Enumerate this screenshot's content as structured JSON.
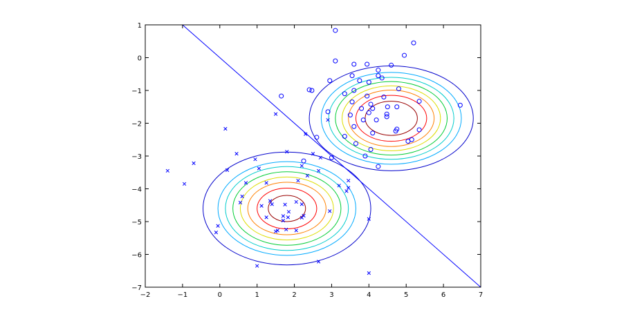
{
  "chart_data": {
    "type": "scatter",
    "title": "",
    "xlabel": "",
    "ylabel": "",
    "xlim": [
      -2,
      7
    ],
    "ylim": [
      -7,
      1
    ],
    "xticks": [
      "−2",
      "−1",
      "0",
      "1",
      "2",
      "3",
      "4",
      "5",
      "6",
      "7"
    ],
    "yticks": [
      "1",
      "0",
      "−1",
      "−2",
      "−3",
      "−4",
      "−5",
      "−6",
      "−7"
    ],
    "grid": false,
    "legend": "none",
    "colors": {
      "points": "#0000ff",
      "boundary": "#0000ff",
      "axes": "#000000"
    },
    "series": [
      {
        "marker": "o",
        "points": [
          [
            3.1,
            0.83
          ],
          [
            5.2,
            0.45
          ],
          [
            3.1,
            -0.1
          ],
          [
            4.95,
            0.07
          ],
          [
            4.6,
            -0.23
          ],
          [
            3.6,
            -0.2
          ],
          [
            3.95,
            -0.2
          ],
          [
            4.25,
            -0.38
          ],
          [
            3.55,
            -0.55
          ],
          [
            4.25,
            -0.55
          ],
          [
            4.35,
            -0.62
          ],
          [
            2.95,
            -0.7
          ],
          [
            3.75,
            -0.7
          ],
          [
            4.0,
            -0.75
          ],
          [
            2.4,
            -0.98
          ],
          [
            2.47,
            -1.0
          ],
          [
            3.35,
            -1.1
          ],
          [
            3.6,
            -1.0
          ],
          [
            4.8,
            -0.95
          ],
          [
            1.65,
            -1.17
          ],
          [
            3.95,
            -1.17
          ],
          [
            4.4,
            -1.2
          ],
          [
            3.55,
            -1.35
          ],
          [
            5.35,
            -1.33
          ],
          [
            4.05,
            -1.42
          ],
          [
            4.5,
            -1.5
          ],
          [
            4.75,
            -1.5
          ],
          [
            2.9,
            -1.65
          ],
          [
            3.8,
            -1.55
          ],
          [
            4.1,
            -1.55
          ],
          [
            4.0,
            -1.68
          ],
          [
            3.5,
            -1.75
          ],
          [
            4.48,
            -1.72
          ],
          [
            4.48,
            -1.8
          ],
          [
            6.45,
            -1.45
          ],
          [
            3.85,
            -1.9
          ],
          [
            4.2,
            -1.9
          ],
          [
            3.6,
            -2.1
          ],
          [
            4.75,
            -2.18
          ],
          [
            4.72,
            -2.24
          ],
          [
            5.35,
            -2.2
          ],
          [
            4.1,
            -2.3
          ],
          [
            2.6,
            -2.43
          ],
          [
            3.35,
            -2.4
          ],
          [
            5.05,
            -2.55
          ],
          [
            5.15,
            -2.5
          ],
          [
            3.65,
            -2.62
          ],
          [
            4.05,
            -2.8
          ],
          [
            3.0,
            -3.05
          ],
          [
            3.9,
            -3.0
          ],
          [
            4.25,
            -3.32
          ],
          [
            2.25,
            -3.15
          ]
        ]
      },
      {
        "marker": "x",
        "points": [
          [
            1.5,
            -1.72
          ],
          [
            2.9,
            -1.9
          ],
          [
            0.15,
            -2.17
          ],
          [
            2.3,
            -2.33
          ],
          [
            1.8,
            -2.87
          ],
          [
            0.45,
            -2.93
          ],
          [
            2.5,
            -2.93
          ],
          [
            0.95,
            -3.1
          ],
          [
            2.7,
            -3.05
          ],
          [
            -0.7,
            -3.22
          ],
          [
            2.2,
            -3.3
          ],
          [
            1.05,
            -3.38
          ],
          [
            -1.4,
            -3.45
          ],
          [
            0.2,
            -3.43
          ],
          [
            2.65,
            -3.45
          ],
          [
            2.35,
            -3.6
          ],
          [
            3.45,
            -3.75
          ],
          [
            2.1,
            -3.75
          ],
          [
            0.7,
            -3.82
          ],
          [
            1.25,
            -3.82
          ],
          [
            -0.95,
            -3.85
          ],
          [
            3.2,
            -3.9
          ],
          [
            3.45,
            -3.97
          ],
          [
            3.4,
            -4.07
          ],
          [
            0.6,
            -4.23
          ],
          [
            1.35,
            -4.37
          ],
          [
            2.05,
            -4.4
          ],
          [
            1.4,
            -4.47
          ],
          [
            2.2,
            -4.47
          ],
          [
            0.55,
            -4.42
          ],
          [
            1.75,
            -4.48
          ],
          [
            1.12,
            -4.52
          ],
          [
            1.85,
            -4.7
          ],
          [
            2.95,
            -4.68
          ],
          [
            1.7,
            -4.83
          ],
          [
            2.25,
            -4.82
          ],
          [
            1.25,
            -4.87
          ],
          [
            1.83,
            -4.87
          ],
          [
            2.2,
            -4.88
          ],
          [
            4.0,
            -4.92
          ],
          [
            1.7,
            -4.97
          ],
          [
            1.55,
            -5.27
          ],
          [
            1.78,
            -5.24
          ],
          [
            2.05,
            -5.27
          ],
          [
            1.5,
            -5.3
          ],
          [
            -0.05,
            -5.13
          ],
          [
            -0.1,
            -5.33
          ],
          [
            2.65,
            -6.22
          ],
          [
            1.0,
            -6.35
          ],
          [
            4.0,
            -6.57
          ]
        ]
      }
    ],
    "decision_boundary": {
      "x": [
        -1,
        7
      ],
      "y": [
        1,
        -7
      ]
    },
    "contours": [
      {
        "center": [
          4.6,
          -1.85
        ],
        "radii": [
          [
            0.7,
            0.52,
            "#990000"
          ],
          [
            0.95,
            0.7,
            "#ff0000"
          ],
          [
            1.15,
            0.86,
            "#ff8000"
          ],
          [
            1.32,
            0.99,
            "#dddd00"
          ],
          [
            1.5,
            1.12,
            "#00cc33"
          ],
          [
            1.68,
            1.25,
            "#00cccc"
          ],
          [
            1.88,
            1.4,
            "#00aaff"
          ],
          [
            2.2,
            1.6,
            "#0000cc"
          ]
        ]
      },
      {
        "center": [
          1.8,
          -4.6
        ],
        "radii": [
          [
            0.5,
            0.4,
            "#990000"
          ],
          [
            0.8,
            0.62,
            "#ff0000"
          ],
          [
            1.05,
            0.8,
            "#ff8000"
          ],
          [
            1.25,
            0.96,
            "#dddd00"
          ],
          [
            1.45,
            1.12,
            "#00cc33"
          ],
          [
            1.65,
            1.28,
            "#00cccc"
          ],
          [
            1.85,
            1.43,
            "#00aaff"
          ],
          [
            2.25,
            1.72,
            "#0000cc"
          ]
        ]
      }
    ]
  }
}
